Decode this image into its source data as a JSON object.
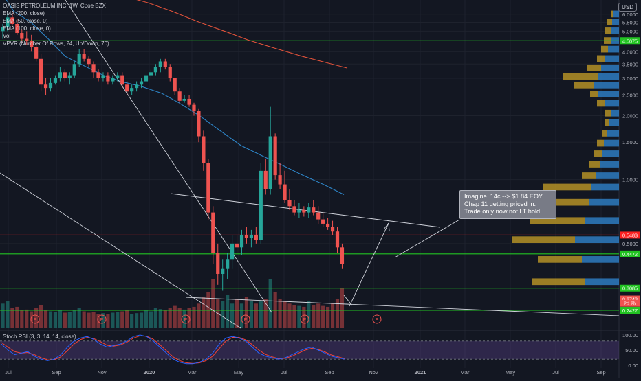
{
  "legend": {
    "symbol": "OASIS PETROLEUM INC, 1W, Cboe BZX",
    "ema200": "EMA (200, close)",
    "ema50": "EMA (50, close, 0)",
    "ema100": "EMA (100, close, 0)",
    "vol": "Vol",
    "vpvr": "VPVR (Number Of Rows, 24, Up/Down, 70)"
  },
  "currency": "USD",
  "rsi_label": "Stoch RSI (3, 3, 14, 14, close)",
  "annotation": {
    "line1": "Imagine  .14c --> $1.84 EOY",
    "line2": "Chap 11 getting priced in.",
    "line3": "Trade only now not LT hold"
  },
  "colors": {
    "up": "#26a69a",
    "down": "#ef5350",
    "ema200": "#e0523a",
    "ema50": "#2e86c9",
    "vpvr_up": "#2e7bbf",
    "vpvr_down": "#c9a227",
    "hline_red": "#ff2020",
    "hline_green": "#22c322",
    "rsi_k": "#2962ff",
    "rsi_d": "#f44336",
    "rsi_band": "#7e57c2"
  },
  "chart_data": {
    "type": "candlestick",
    "title": "OASIS PETROLEUM INC, 1W, Cboe BZX",
    "y_scale": "log",
    "ylim": [
      0.2,
      6.6
    ],
    "price_ticks": [
      "6.0000",
      "5.5000",
      "5.0000",
      "4.5000",
      "4.0000",
      "3.5000",
      "3.0000",
      "2.5000",
      "2.0000",
      "1.5000",
      "1.0000",
      "0.5000"
    ],
    "x_ticks": [
      "Jul",
      "Sep",
      "Nov",
      "2020",
      "Mar",
      "May",
      "Jul",
      "Sep",
      "Nov",
      "2021",
      "Mar",
      "May",
      "Jul",
      "Sep"
    ],
    "price_labels": [
      {
        "text": "4.5075",
        "value": 4.5075,
        "color": "#22c322"
      },
      {
        "text": "0.5483",
        "value": 0.5483,
        "color": "#ff2020"
      },
      {
        "text": "0.4472",
        "value": 0.4472,
        "color": "#22c322"
      },
      {
        "text": "0.3085",
        "value": 0.3085,
        "color": "#22c322"
      },
      {
        "text": "0.2743",
        "value": 0.2743,
        "color": "#ef5350"
      },
      {
        "text": "2d 2h",
        "value": 0.262,
        "color": "#ef5350"
      },
      {
        "text": "0.2427",
        "value": 0.2427,
        "color": "#22c322"
      }
    ],
    "hlines": [
      {
        "value": 4.5075,
        "color": "#22c322"
      },
      {
        "value": 0.5483,
        "color": "#ff2020"
      },
      {
        "value": 0.4472,
        "color": "#22c322"
      },
      {
        "value": 0.3085,
        "color": "#22c322"
      },
      {
        "value": 0.2427,
        "color": "#22c322"
      }
    ],
    "candles": [
      [
        5.0,
        5.4,
        4.6,
        5.2
      ],
      [
        5.2,
        6.0,
        5.0,
        5.8
      ],
      [
        5.8,
        6.1,
        5.3,
        5.4
      ],
      [
        5.4,
        5.7,
        4.8,
        4.9
      ],
      [
        4.9,
        5.1,
        4.4,
        4.6
      ],
      [
        4.6,
        5.0,
        4.3,
        4.5
      ],
      [
        4.5,
        4.8,
        4.0,
        4.2
      ],
      [
        4.2,
        4.4,
        3.6,
        3.7
      ],
      [
        3.7,
        3.9,
        2.6,
        2.8
      ],
      [
        2.8,
        3.0,
        2.5,
        2.7
      ],
      [
        2.7,
        3.0,
        2.6,
        2.85
      ],
      [
        2.85,
        3.1,
        2.8,
        3.0
      ],
      [
        3.0,
        3.4,
        2.9,
        3.2
      ],
      [
        3.2,
        3.3,
        2.9,
        3.0
      ],
      [
        3.0,
        3.2,
        2.8,
        3.1
      ],
      [
        3.1,
        3.6,
        3.0,
        3.5
      ],
      [
        3.5,
        4.1,
        3.4,
        3.9
      ],
      [
        3.9,
        4.1,
        3.6,
        3.7
      ],
      [
        3.7,
        3.8,
        3.4,
        3.5
      ],
      [
        3.5,
        3.6,
        3.0,
        3.2
      ],
      [
        3.2,
        3.3,
        2.9,
        3.0
      ],
      [
        3.0,
        3.2,
        2.9,
        3.1
      ],
      [
        3.1,
        3.2,
        2.8,
        2.9
      ],
      [
        2.9,
        3.1,
        2.8,
        3.0
      ],
      [
        3.0,
        3.2,
        2.9,
        3.1
      ],
      [
        3.1,
        3.2,
        2.7,
        2.8
      ],
      [
        2.8,
        2.9,
        2.5,
        2.6
      ],
      [
        2.6,
        2.8,
        2.5,
        2.7
      ],
      [
        2.7,
        2.9,
        2.6,
        2.8
      ],
      [
        2.8,
        3.0,
        2.7,
        2.9
      ],
      [
        2.9,
        3.2,
        2.8,
        3.1
      ],
      [
        3.1,
        3.3,
        3.0,
        3.2
      ],
      [
        3.2,
        3.5,
        3.1,
        3.4
      ],
      [
        3.4,
        3.7,
        3.2,
        3.6
      ],
      [
        3.6,
        3.7,
        3.3,
        3.4
      ],
      [
        3.4,
        3.5,
        2.9,
        3.0
      ],
      [
        3.0,
        3.0,
        2.5,
        2.6
      ],
      [
        2.6,
        2.7,
        2.3,
        2.35
      ],
      [
        2.35,
        2.5,
        2.3,
        2.4
      ],
      [
        2.4,
        2.5,
        2.2,
        2.25
      ],
      [
        2.25,
        2.3,
        2.0,
        2.1
      ],
      [
        2.1,
        2.15,
        1.5,
        1.6
      ],
      [
        1.6,
        1.7,
        1.1,
        1.2
      ],
      [
        1.2,
        1.25,
        0.65,
        0.7
      ],
      [
        0.7,
        0.75,
        0.4,
        0.45
      ],
      [
        0.45,
        0.5,
        0.32,
        0.36
      ],
      [
        0.36,
        0.42,
        0.3,
        0.38
      ],
      [
        0.38,
        0.45,
        0.34,
        0.42
      ],
      [
        0.42,
        0.55,
        0.38,
        0.5
      ],
      [
        0.5,
        0.55,
        0.45,
        0.48
      ],
      [
        0.48,
        0.58,
        0.44,
        0.55
      ],
      [
        0.55,
        0.6,
        0.5,
        0.53
      ],
      [
        0.53,
        0.58,
        0.48,
        0.55
      ],
      [
        0.55,
        0.6,
        0.5,
        0.52
      ],
      [
        0.52,
        1.2,
        0.5,
        1.1
      ],
      [
        1.1,
        1.25,
        0.85,
        0.9
      ],
      [
        0.9,
        2.2,
        0.85,
        1.6
      ],
      [
        1.6,
        1.65,
        1.0,
        1.05
      ],
      [
        1.05,
        1.2,
        0.9,
        0.95
      ],
      [
        0.95,
        1.1,
        0.78,
        0.8
      ],
      [
        0.8,
        0.9,
        0.72,
        0.75
      ],
      [
        0.75,
        0.8,
        0.68,
        0.7
      ],
      [
        0.7,
        0.78,
        0.66,
        0.72
      ],
      [
        0.72,
        0.75,
        0.67,
        0.7
      ],
      [
        0.7,
        0.78,
        0.66,
        0.74
      ],
      [
        0.74,
        0.8,
        0.68,
        0.7
      ],
      [
        0.7,
        0.75,
        0.62,
        0.65
      ],
      [
        0.65,
        0.7,
        0.6,
        0.62
      ],
      [
        0.62,
        0.66,
        0.58,
        0.6
      ],
      [
        0.6,
        0.64,
        0.55,
        0.57
      ],
      [
        0.57,
        0.6,
        0.45,
        0.48
      ],
      [
        0.48,
        0.5,
        0.38,
        0.4
      ]
    ],
    "volume": [
      0.45,
      0.5,
      0.35,
      0.38,
      0.3,
      0.32,
      0.28,
      0.35,
      0.42,
      0.3,
      0.28,
      0.26,
      0.3,
      0.25,
      0.27,
      0.3,
      0.36,
      0.28,
      0.25,
      0.27,
      0.22,
      0.24,
      0.22,
      0.25,
      0.26,
      0.28,
      0.3,
      0.22,
      0.24,
      0.25,
      0.3,
      0.28,
      0.35,
      0.33,
      0.3,
      0.35,
      0.4,
      0.36,
      0.32,
      0.35,
      0.38,
      0.45,
      0.6,
      0.7,
      1.0,
      0.55,
      0.5,
      0.65,
      0.45,
      0.55,
      0.45,
      0.6,
      0.5,
      0.45,
      0.5,
      0.55,
      1.0,
      0.7,
      0.55,
      0.5,
      0.45,
      0.42,
      0.4,
      0.38,
      0.5,
      0.42,
      0.45,
      0.4,
      0.38,
      0.45,
      0.55,
      0.8
    ],
    "ema50": [
      [
        0,
        7.8
      ],
      [
        20,
        6.2
      ],
      [
        45,
        5.5
      ],
      [
        70,
        4.6
      ],
      [
        95,
        3.8
      ],
      [
        125,
        3.4
      ],
      [
        150,
        3.1
      ],
      [
        175,
        2.9
      ],
      [
        205,
        2.75
      ],
      [
        235,
        2.55
      ],
      [
        260,
        2.3
      ],
      [
        290,
        2.0
      ],
      [
        320,
        1.7
      ],
      [
        350,
        1.45
      ],
      [
        380,
        1.3
      ],
      [
        410,
        1.17
      ],
      [
        440,
        1.05
      ],
      [
        470,
        0.95
      ],
      [
        500,
        0.85
      ]
    ],
    "ema200": [
      [
        180,
        7.3
      ],
      [
        215,
        6.8
      ],
      [
        250,
        6.2
      ],
      [
        290,
        5.5
      ],
      [
        330,
        4.95
      ],
      [
        360,
        4.55
      ],
      [
        400,
        4.15
      ],
      [
        440,
        3.8
      ],
      [
        475,
        3.55
      ],
      [
        505,
        3.35
      ]
    ],
    "vpvr": [
      {
        "value": 6.0,
        "up": 8,
        "down": 4
      },
      {
        "value": 5.5,
        "up": 10,
        "down": 7
      },
      {
        "value": 5.0,
        "up": 12,
        "down": 8
      },
      {
        "value": 4.5,
        "up": 12,
        "down": 10
      },
      {
        "value": 4.1,
        "up": 16,
        "down": 10
      },
      {
        "value": 3.7,
        "up": 20,
        "down": 12
      },
      {
        "value": 3.35,
        "up": 26,
        "down": 20
      },
      {
        "value": 3.05,
        "up": 30,
        "down": 52
      },
      {
        "value": 2.78,
        "up": 36,
        "down": 30
      },
      {
        "value": 2.52,
        "up": 30,
        "down": 12
      },
      {
        "value": 2.28,
        "up": 20,
        "down": 12
      },
      {
        "value": 2.05,
        "up": 12,
        "down": 8
      },
      {
        "value": 1.85,
        "up": 14,
        "down": 6
      },
      {
        "value": 1.65,
        "up": 18,
        "down": 6
      },
      {
        "value": 1.48,
        "up": 22,
        "down": 10
      },
      {
        "value": 1.32,
        "up": 24,
        "down": 12
      },
      {
        "value": 1.18,
        "up": 28,
        "down": 16
      },
      {
        "value": 1.04,
        "up": 34,
        "down": 20
      },
      {
        "value": 0.92,
        "up": 40,
        "down": 70
      },
      {
        "value": 0.78,
        "up": 44,
        "down": 48
      },
      {
        "value": 0.64,
        "up": 50,
        "down": 80
      },
      {
        "value": 0.52,
        "up": 64,
        "down": 92
      },
      {
        "value": 0.42,
        "up": 54,
        "down": 64
      },
      {
        "value": 0.33,
        "up": 50,
        "down": 76
      }
    ],
    "rsi": {
      "ticks": [
        "100.00",
        "50.00",
        "0.00"
      ],
      "k": [
        70,
        50,
        35,
        40,
        45,
        30,
        20,
        15,
        20,
        35,
        60,
        80,
        90,
        95,
        85,
        70,
        60,
        65,
        70,
        80,
        95,
        100,
        95,
        80,
        60,
        40,
        20,
        10,
        5,
        5,
        10,
        20,
        40,
        70,
        90,
        95,
        90,
        80,
        60,
        40,
        30,
        25,
        20,
        25,
        35,
        45,
        55,
        60,
        50,
        40,
        30,
        25,
        20
      ],
      "d": [
        75,
        60,
        45,
        40,
        42,
        35,
        25,
        18,
        18,
        28,
        48,
        70,
        85,
        92,
        88,
        78,
        66,
        63,
        67,
        76,
        90,
        97,
        96,
        86,
        68,
        48,
        28,
        15,
        8,
        6,
        8,
        15,
        30,
        55,
        80,
        92,
        92,
        84,
        68,
        50,
        36,
        28,
        22,
        23,
        30,
        40,
        50,
        56,
        52,
        44,
        34,
        28,
        22
      ]
    }
  }
}
